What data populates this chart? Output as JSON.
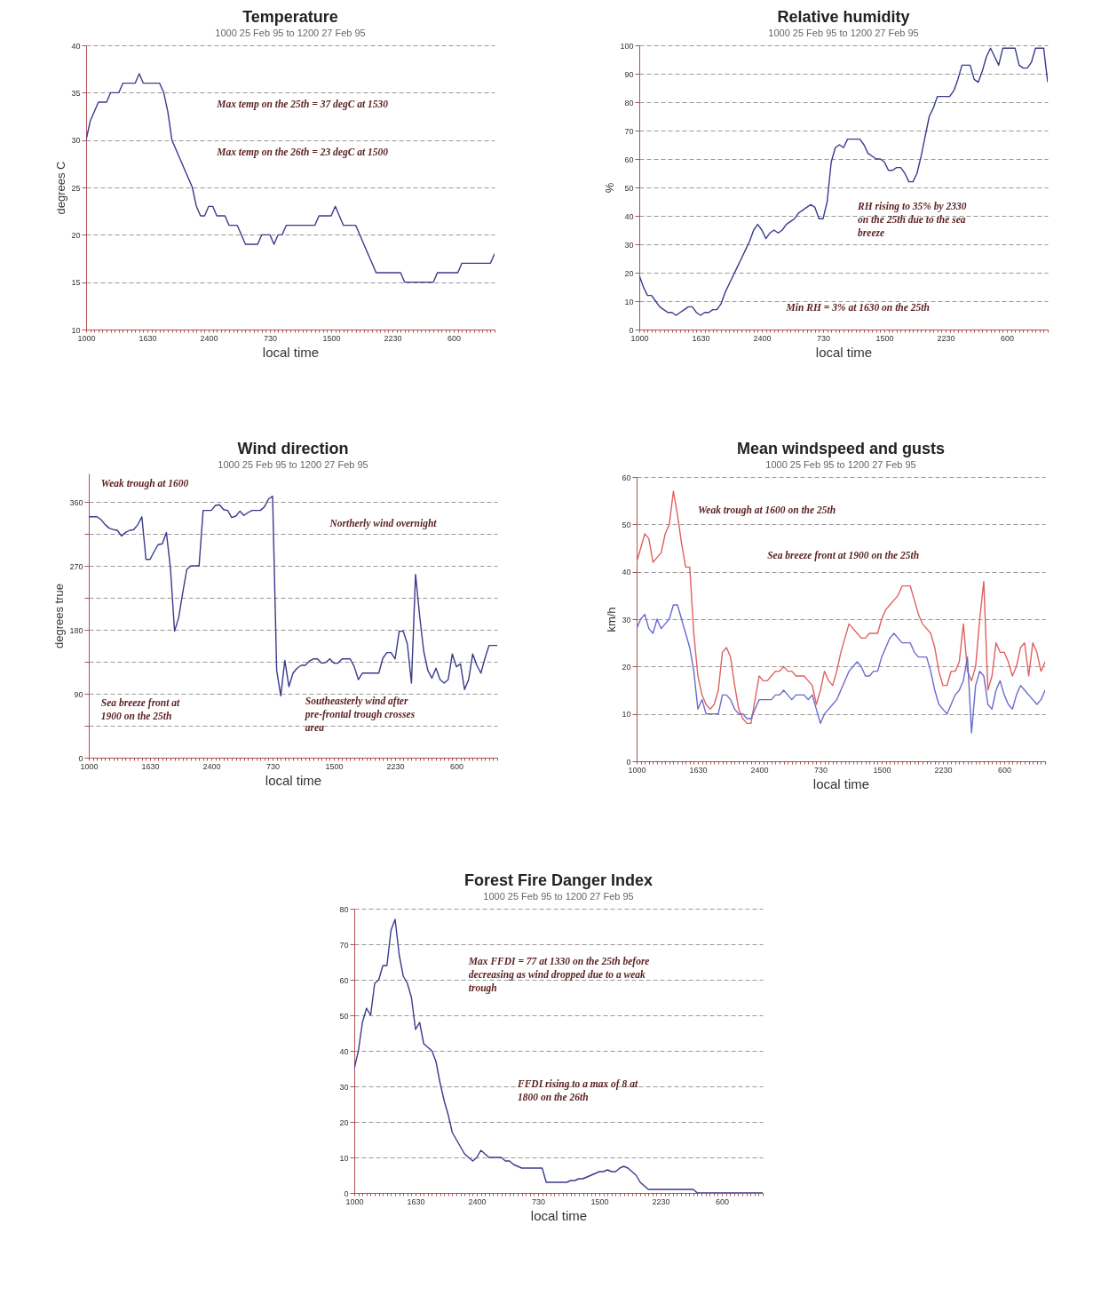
{
  "chart_data": [
    {
      "type": "line",
      "title": "Temperature",
      "subtitle": "1000 25 Feb 95 to 1200 27 Feb 95",
      "xlabel": "local time",
      "ylabel": "degrees C",
      "categories": [
        "1000",
        null,
        null,
        null,
        null,
        null,
        null,
        null,
        null,
        null,
        null,
        null,
        null,
        null,
        null,
        "1630",
        null,
        null,
        null,
        null,
        null,
        null,
        null,
        null,
        null,
        null,
        null,
        null,
        null,
        null,
        "2400",
        null,
        null,
        null,
        null,
        null,
        null,
        null,
        null,
        null,
        null,
        null,
        null,
        null,
        null,
        "730",
        null,
        null,
        null,
        null,
        null,
        null,
        null,
        null,
        null,
        null,
        null,
        null,
        null,
        null,
        "1500",
        null,
        null,
        null,
        null,
        null,
        null,
        null,
        null,
        null,
        null,
        null,
        null,
        null,
        null,
        "2230",
        null,
        null,
        null,
        null,
        null,
        null,
        null,
        null,
        null,
        null,
        null,
        null,
        null,
        null,
        "600",
        null,
        null,
        null,
        null,
        null,
        null,
        null,
        null,
        null,
        null
      ],
      "ylim": [
        10,
        40
      ],
      "yticks": [
        10,
        15,
        20,
        25,
        30,
        35,
        40
      ],
      "grid": "y",
      "annotations": [
        "Max temp on the 25th = 37 degC at 1530",
        "Max temp on the 26th = 23 degC at 1500"
      ],
      "series": [
        {
          "color": "#3a3a8c",
          "values": [
            30,
            32,
            33,
            34,
            34,
            34,
            35,
            35,
            35,
            36,
            36,
            36,
            36,
            37,
            36,
            36,
            36,
            36,
            36,
            35,
            33,
            30,
            29,
            28,
            27,
            26,
            25,
            23,
            22,
            22,
            23,
            23,
            22,
            22,
            22,
            21,
            21,
            21,
            20,
            19,
            19,
            19,
            19,
            20,
            20,
            20,
            19,
            20,
            20,
            21,
            21,
            21,
            21,
            21,
            21,
            21,
            21,
            22,
            22,
            22,
            22,
            23,
            22,
            21,
            21,
            21,
            21,
            20,
            19,
            18,
            17,
            16,
            16,
            16,
            16,
            16,
            16,
            16,
            15,
            15,
            15,
            15,
            15,
            15,
            15,
            15,
            16,
            16,
            16,
            16,
            16,
            16,
            17,
            17,
            17,
            17,
            17,
            17,
            17,
            17,
            18
          ]
        }
      ]
    },
    {
      "type": "line",
      "title": "Relative humidity",
      "subtitle": "1000 25 Feb 95 to 1200 27 Feb 95",
      "xlabel": "local time",
      "ylabel": "%",
      "categories": [
        "1000",
        null,
        null,
        null,
        null,
        null,
        null,
        null,
        null,
        null,
        null,
        null,
        null,
        null,
        null,
        "1630",
        null,
        null,
        null,
        null,
        null,
        null,
        null,
        null,
        null,
        null,
        null,
        null,
        null,
        null,
        "2400",
        null,
        null,
        null,
        null,
        null,
        null,
        null,
        null,
        null,
        null,
        null,
        null,
        null,
        null,
        "730",
        null,
        null,
        null,
        null,
        null,
        null,
        null,
        null,
        null,
        null,
        null,
        null,
        null,
        null,
        "1500",
        null,
        null,
        null,
        null,
        null,
        null,
        null,
        null,
        null,
        null,
        null,
        null,
        null,
        null,
        "2230",
        null,
        null,
        null,
        null,
        null,
        null,
        null,
        null,
        null,
        null,
        null,
        null,
        null,
        null,
        "600",
        null,
        null,
        null,
        null,
        null,
        null,
        null,
        null,
        null,
        null
      ],
      "ylim": [
        0,
        100
      ],
      "yticks": [
        0,
        10,
        20,
        30,
        40,
        50,
        60,
        70,
        80,
        90,
        100
      ],
      "grid": "y",
      "annotations": [
        "RH rising to 35% by 2330 on the 25th due to the sea breeze",
        "Min RH = 3% at 1630 on the 25th"
      ],
      "series": [
        {
          "color": "#3a3a8c",
          "values": [
            19,
            15,
            12,
            12,
            10,
            8,
            7,
            6,
            6,
            5,
            6,
            7,
            8,
            8,
            6,
            5,
            6,
            6,
            7,
            7,
            9,
            13,
            16,
            19,
            22,
            25,
            28,
            31,
            35,
            37,
            35,
            32,
            34,
            35,
            34,
            35,
            37,
            38,
            39,
            41,
            42,
            43,
            44,
            43,
            39,
            39,
            45,
            59,
            64,
            65,
            64,
            67,
            67,
            67,
            67,
            65,
            62,
            61,
            60,
            60,
            59,
            56,
            56,
            57,
            57,
            55,
            52,
            52,
            55,
            61,
            68,
            75,
            78,
            82,
            82,
            82,
            82,
            84,
            88,
            93,
            93,
            93,
            88,
            87,
            91,
            96,
            99,
            96,
            93,
            99,
            99,
            99,
            99,
            93,
            92,
            92,
            94,
            99,
            99,
            99,
            87
          ]
        }
      ]
    },
    {
      "type": "line",
      "title": "Wind direction",
      "subtitle": "1000 25 Feb 95 to 1200 27 Feb 95",
      "xlabel": "local time",
      "ylabel": "degrees true",
      "categories": [
        "1000",
        null,
        null,
        null,
        null,
        null,
        null,
        null,
        null,
        null,
        null,
        null,
        null,
        null,
        null,
        "1630",
        null,
        null,
        null,
        null,
        null,
        null,
        null,
        null,
        null,
        null,
        null,
        null,
        null,
        null,
        "2400",
        null,
        null,
        null,
        null,
        null,
        null,
        null,
        null,
        null,
        null,
        null,
        null,
        null,
        null,
        "730",
        null,
        null,
        null,
        null,
        null,
        null,
        null,
        null,
        null,
        null,
        null,
        null,
        null,
        null,
        "1500",
        null,
        null,
        null,
        null,
        null,
        null,
        null,
        null,
        null,
        null,
        null,
        null,
        null,
        null,
        "2230",
        null,
        null,
        null,
        null,
        null,
        null,
        null,
        null,
        null,
        null,
        null,
        null,
        null,
        null,
        "600",
        null,
        null,
        null,
        null,
        null,
        null,
        null,
        null,
        null,
        null
      ],
      "ylim": [
        0,
        400
      ],
      "yticks": [
        0,
        {
          "value": 45,
          "label": null
        },
        90,
        {
          "value": 135,
          "label": null
        },
        180,
        {
          "value": 225,
          "label": null
        },
        270,
        {
          "value": 315,
          "label": null
        },
        360
      ],
      "grid": "y",
      "annotations": [
        "Weak trough at 1600",
        "Northerly wind overnight",
        "Sea breeze front at 1900 on the 25th",
        "Southeasterly wind after pre-frontal trough crosses area"
      ],
      "series": [
        {
          "color": "#3a3a8c",
          "values": [
            339,
            339,
            339,
            335,
            328,
            323,
            321,
            320,
            312,
            317,
            320,
            321,
            328,
            339,
            279,
            279,
            290,
            300,
            301,
            317,
            266,
            178,
            197,
            232,
            265,
            270,
            270,
            270,
            348,
            348,
            348,
            355,
            356,
            349,
            348,
            338,
            340,
            347,
            341,
            345,
            348,
            348,
            348,
            353,
            364,
            368,
            123,
            87,
            137,
            100,
            119,
            126,
            130,
            130,
            136,
            139,
            139,
            133,
            134,
            139,
            133,
            133,
            139,
            139,
            139,
            128,
            110,
            119,
            119,
            119,
            119,
            119,
            140,
            148,
            148,
            139,
            178,
            178,
            160,
            105,
            258,
            200,
            150,
            123,
            112,
            126,
            110,
            105,
            110,
            146,
            128,
            132,
            96,
            110,
            146,
            130,
            119,
            140,
            158,
            158,
            158
          ]
        }
      ]
    },
    {
      "type": "line",
      "title": "Mean windspeed and gusts",
      "subtitle": "1000 25 Feb 95 to 1200 27 Feb 95",
      "xlabel": "local time",
      "ylabel": "km/h",
      "categories": [
        "1000",
        null,
        null,
        null,
        null,
        null,
        null,
        null,
        null,
        null,
        null,
        null,
        null,
        null,
        null,
        "1630",
        null,
        null,
        null,
        null,
        null,
        null,
        null,
        null,
        null,
        null,
        null,
        null,
        null,
        null,
        "2400",
        null,
        null,
        null,
        null,
        null,
        null,
        null,
        null,
        null,
        null,
        null,
        null,
        null,
        null,
        "730",
        null,
        null,
        null,
        null,
        null,
        null,
        null,
        null,
        null,
        null,
        null,
        null,
        null,
        null,
        "1500",
        null,
        null,
        null,
        null,
        null,
        null,
        null,
        null,
        null,
        null,
        null,
        null,
        null,
        null,
        "2230",
        null,
        null,
        null,
        null,
        null,
        null,
        null,
        null,
        null,
        null,
        null,
        null,
        null,
        null,
        "600",
        null,
        null,
        null,
        null,
        null,
        null,
        null,
        null,
        null,
        null
      ],
      "ylim": [
        0,
        60
      ],
      "yticks": [
        0,
        10,
        20,
        30,
        40,
        50,
        60
      ],
      "grid": "y",
      "annotations": [
        "Weak trough at 1600 on the 25th",
        "Sea breeze front at 1900 on the 25th"
      ],
      "series": [
        {
          "color": "#e06060",
          "values": [
            42,
            45,
            48,
            47,
            42,
            43,
            44,
            48,
            50,
            57,
            52,
            46,
            41,
            41,
            27,
            18,
            14,
            12,
            11,
            12,
            15,
            23,
            24,
            22,
            16,
            11,
            9,
            8,
            8,
            13,
            18,
            17,
            17,
            18,
            19,
            19,
            20,
            19,
            19,
            18,
            18,
            18,
            17,
            16,
            12,
            15,
            19,
            17,
            16,
            19,
            23,
            26,
            29,
            28,
            27,
            26,
            26,
            27,
            27,
            27,
            30,
            32,
            33,
            34,
            35,
            37,
            37,
            37,
            34,
            31,
            29,
            28,
            27,
            24,
            19,
            16,
            16,
            19,
            19,
            21,
            29,
            19,
            17,
            20,
            30,
            38,
            15,
            18,
            25,
            23,
            23,
            21,
            18,
            20,
            24,
            25,
            18,
            25,
            23,
            19,
            21
          ]
        },
        {
          "color": "#6a6ad0",
          "values": [
            28,
            30,
            31,
            28,
            27,
            30,
            28,
            29,
            30,
            33,
            33,
            30,
            27,
            24,
            19,
            11,
            13,
            10,
            10,
            10,
            10,
            14,
            14,
            13,
            11,
            10,
            10,
            9,
            9,
            11,
            13,
            13,
            13,
            13,
            14,
            14,
            15,
            14,
            13,
            14,
            14,
            14,
            13,
            14,
            11,
            8,
            10,
            11,
            12,
            13,
            15,
            17,
            19,
            20,
            21,
            20,
            18,
            18,
            19,
            19,
            22,
            24,
            26,
            27,
            26,
            25,
            25,
            25,
            23,
            22,
            22,
            22,
            19,
            15,
            12,
            11,
            10,
            12,
            14,
            15,
            17,
            22,
            6,
            16,
            19,
            18,
            12,
            11,
            15,
            17,
            14,
            12,
            11,
            14,
            16,
            15,
            14,
            13,
            12,
            13,
            15
          ]
        }
      ]
    },
    {
      "type": "line",
      "title": "Forest Fire Danger Index",
      "subtitle": "1000 25 Feb 95 to 1200 27 Feb 95",
      "xlabel": "local time",
      "categories": [
        "1000",
        null,
        null,
        null,
        null,
        null,
        null,
        null,
        null,
        null,
        null,
        null,
        null,
        null,
        null,
        "1630",
        null,
        null,
        null,
        null,
        null,
        null,
        null,
        null,
        null,
        null,
        null,
        null,
        null,
        null,
        "2400",
        null,
        null,
        null,
        null,
        null,
        null,
        null,
        null,
        null,
        null,
        null,
        null,
        null,
        null,
        "730",
        null,
        null,
        null,
        null,
        null,
        null,
        null,
        null,
        null,
        null,
        null,
        null,
        null,
        null,
        "1500",
        null,
        null,
        null,
        null,
        null,
        null,
        null,
        null,
        null,
        null,
        null,
        null,
        null,
        null,
        "2230",
        null,
        null,
        null,
        null,
        null,
        null,
        null,
        null,
        null,
        null,
        null,
        null,
        null,
        null,
        "600",
        null,
        null,
        null,
        null,
        null,
        null,
        null,
        null,
        null,
        null
      ],
      "ylim": [
        0,
        80
      ],
      "yticks": [
        0,
        10,
        20,
        30,
        40,
        50,
        60,
        70,
        80
      ],
      "grid": "y",
      "annotations": [
        "Max FFDI = 77 at 1330 on the 25th before decreasing as wind dropped due to a weak trough",
        "FFDI rising to a max of  8 at 1800 on the 26th"
      ],
      "series": [
        {
          "color": "#3a3a8c",
          "values": [
            35,
            40,
            48,
            52,
            50,
            59,
            60,
            64,
            64,
            74,
            77,
            67,
            61,
            59,
            55,
            46,
            48,
            42,
            41,
            40,
            37,
            31,
            26,
            22,
            17,
            15,
            13,
            11,
            10,
            9,
            10,
            12,
            11,
            10,
            10,
            10,
            10,
            9,
            9,
            8,
            7.5,
            7,
            7,
            7,
            7,
            7,
            7,
            3,
            3,
            3,
            3,
            3,
            3,
            3.5,
            3.5,
            4,
            4,
            4.5,
            5,
            5.5,
            6,
            6,
            6.5,
            6,
            6,
            7,
            7.5,
            7,
            6,
            5,
            3,
            2,
            1,
            1,
            1,
            1,
            1,
            1,
            1,
            1,
            1,
            1,
            1,
            1,
            0,
            0,
            0,
            0,
            0,
            0,
            0,
            0,
            0,
            0,
            0,
            0,
            0,
            0,
            0,
            0,
            0
          ]
        }
      ]
    }
  ]
}
